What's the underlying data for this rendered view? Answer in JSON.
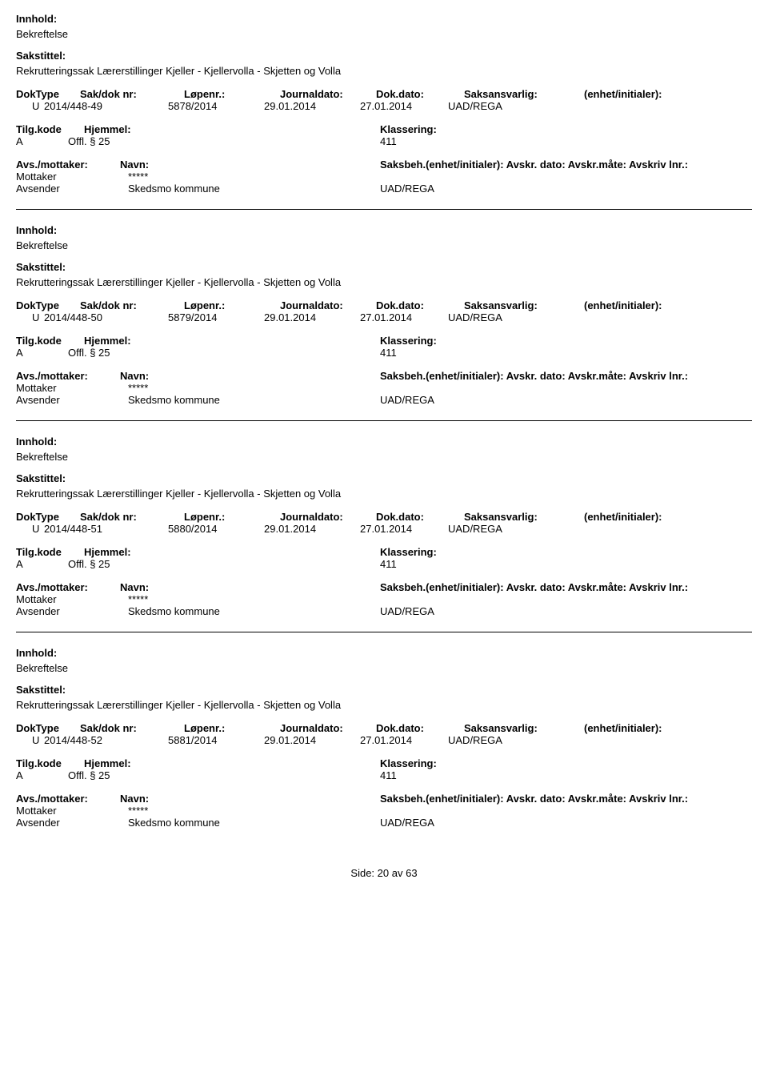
{
  "labels": {
    "innhold": "Innhold:",
    "sakstittel": "Sakstittel:",
    "doktype": "DokType",
    "sakdok": "Sak/dok nr:",
    "lopenr": "Løpenr.:",
    "journaldato": "Journaldato:",
    "dokdato": "Dok.dato:",
    "saksansvarlig": "Saksansvarlig:",
    "enhet": "(enhet/initialer):",
    "tilgkode": "Tilg.kode",
    "hjemmel": "Hjemmel:",
    "klassering": "Klassering:",
    "avsmottaker": "Avs./mottaker:",
    "navn": "Navn:",
    "saksbeh": "Saksbeh.(enhet/initialer): Avskr. dato:  Avskr.måte:  Avskriv lnr.:"
  },
  "common": {
    "innhold_val": "Bekreftelse",
    "sakstittel_val": "Rekrutteringssak Lærerstillinger Kjeller - Kjellervolla - Skjetten og Volla",
    "doktype_val": "U",
    "journaldato_val": "29.01.2014",
    "dokdato_val": "27.01.2014",
    "saksansvarlig_val": "UAD/REGA",
    "tilgkode_val": "A",
    "hjemmel_val": "Offl. § 25",
    "klassering_val": "411",
    "mottaker_label": "Mottaker",
    "mottaker_val": "*****",
    "avsender_label": "Avsender",
    "avsender_val": "Skedsmo kommune",
    "avsender_enhet": "UAD/REGA"
  },
  "records": [
    {
      "sakdok": "2014/448-49",
      "lopenr": "5878/2014"
    },
    {
      "sakdok": "2014/448-50",
      "lopenr": "5879/2014"
    },
    {
      "sakdok": "2014/448-51",
      "lopenr": "5880/2014"
    },
    {
      "sakdok": "2014/448-52",
      "lopenr": "5881/2014"
    }
  ],
  "footer": {
    "side": "Side:",
    "page": "20",
    "av": "av",
    "total": "63"
  }
}
